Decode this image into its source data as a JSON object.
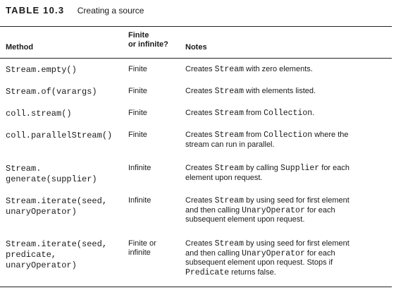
{
  "caption": {
    "label": "TABLE 10.3",
    "title": "Creating a source"
  },
  "headers": {
    "method": "Method",
    "finite": "Finite\nor infinite?",
    "notes": "Notes"
  },
  "rows": [
    {
      "method": "Stream.empty()",
      "finite": "Finite",
      "notes": [
        {
          "t": "Creates "
        },
        {
          "c": "Stream"
        },
        {
          "t": " with zero elements."
        }
      ]
    },
    {
      "method": "Stream.of(varargs)",
      "finite": "Finite",
      "notes": [
        {
          "t": "Creates "
        },
        {
          "c": "Stream"
        },
        {
          "t": " with elements listed."
        }
      ]
    },
    {
      "method": "coll.stream()",
      "finite": "Finite",
      "notes": [
        {
          "t": "Creates "
        },
        {
          "c": "Stream"
        },
        {
          "t": " from "
        },
        {
          "c": "Collection"
        },
        {
          "t": "."
        }
      ]
    },
    {
      "method": "coll.parallelStream()",
      "finite": "Finite",
      "notes": [
        {
          "t": "Creates "
        },
        {
          "c": "Stream"
        },
        {
          "t": " from "
        },
        {
          "c": "Collection"
        },
        {
          "t": " where the\nstream can run in parallel."
        }
      ]
    },
    {
      "method": "Stream.\ngenerate(supplier)",
      "finite": "Infinite",
      "notes": [
        {
          "t": "Creates "
        },
        {
          "c": "Stream"
        },
        {
          "t": " by calling "
        },
        {
          "c": "Supplier"
        },
        {
          "t": " for each\nelement upon request."
        }
      ]
    },
    {
      "method": "Stream.iterate(seed,\nunaryOperator)",
      "finite": "Infinite",
      "notes": [
        {
          "t": "Creates "
        },
        {
          "c": "Stream"
        },
        {
          "t": " by using seed for first element\nand then calling "
        },
        {
          "c": "UnaryOperator"
        },
        {
          "t": " for each\nsubsequent element upon request."
        }
      ]
    },
    {
      "method": "Stream.iterate(seed,\npredicate,\nunaryOperator)",
      "finite": "Finite or\ninfinite",
      "notes": [
        {
          "t": "Creates "
        },
        {
          "c": "Stream"
        },
        {
          "t": " by using seed for first element\nand then calling "
        },
        {
          "c": "UnaryOperator"
        },
        {
          "t": " for each\nsubsequent element upon request. Stops if\n"
        },
        {
          "c": "Predicate"
        },
        {
          "t": " returns false."
        }
      ]
    }
  ]
}
